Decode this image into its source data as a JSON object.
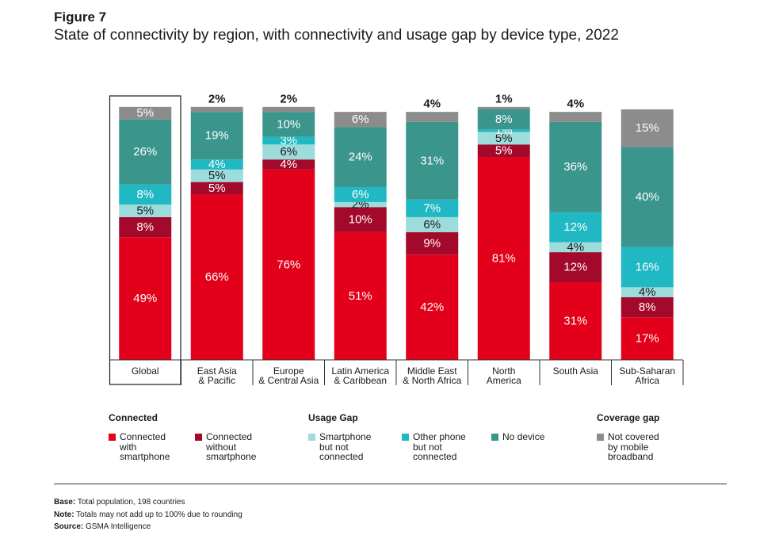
{
  "figure_label": "Figure 7",
  "title": "State of connectivity by region, with connectivity and usage gap by device type, 2022",
  "colors": {
    "connected_smartphone": "#e2001a",
    "connected_without": "#a3092a",
    "smartphone_not_connected": "#9ddcdc",
    "other_phone": "#1fb8c3",
    "no_device": "#3a958c",
    "not_covered": "#8c8c8c"
  },
  "chart_data": {
    "type": "bar",
    "stacked": true,
    "categories": [
      "Global",
      "East Asia\n& Pacific",
      "Europe\n& Central Asia",
      "Latin America\n& Caribbean",
      "Middle East\n& North Africa",
      "North\nAmerica",
      "South Asia",
      "Sub-Saharan\nAfrica"
    ],
    "series": [
      {
        "key": "connected_smartphone",
        "values": [
          49,
          66,
          76,
          51,
          42,
          81,
          31,
          17
        ],
        "labels": [
          "49%",
          "66%",
          "76%",
          "51%",
          "42%",
          "81%",
          "31%",
          "17%"
        ],
        "label_color": "#ffffff"
      },
      {
        "key": "connected_without",
        "values": [
          8,
          5,
          4,
          10,
          9,
          5,
          12,
          8
        ],
        "labels": [
          "8%",
          "5%",
          "4%",
          "10%",
          "9%",
          "5%",
          "12%",
          "8%"
        ],
        "label_color": "#ffffff"
      },
      {
        "key": "smartphone_not_connected",
        "values": [
          5,
          5,
          6,
          2,
          6,
          5,
          4,
          4
        ],
        "labels": [
          "5%",
          "5%",
          "6%",
          "2%",
          "6%",
          "5%",
          "4%",
          "4%"
        ],
        "label_color": "#1a1a1a"
      },
      {
        "key": "other_phone",
        "values": [
          8,
          4,
          3,
          6,
          7,
          1,
          12,
          16
        ],
        "labels": [
          "8%",
          "4%",
          "3%",
          "6%",
          "7%",
          "1%",
          "12%",
          "16%"
        ],
        "label_color": "#ffffff"
      },
      {
        "key": "no_device",
        "values": [
          26,
          19,
          10,
          24,
          31,
          8,
          36,
          40
        ],
        "labels": [
          "26%",
          "19%",
          "10%",
          "24%",
          "31%",
          "8%",
          "36%",
          "40%"
        ],
        "label_color": "#ffffff"
      },
      {
        "key": "not_covered",
        "values": [
          5,
          2,
          2,
          6,
          4,
          1,
          4,
          15
        ],
        "labels": [
          "5%",
          "2%",
          "2%",
          "6%",
          "4%",
          "1%",
          "4%",
          "15%"
        ],
        "label_color": "#ffffff",
        "outside_when_small": true
      }
    ],
    "ylim": [
      0,
      100
    ],
    "highlight_category": "Global"
  },
  "legend": {
    "groups": [
      {
        "heading": "Connected",
        "items": [
          {
            "key": "connected_smartphone",
            "label": "Connected\nwith\nsmartphone"
          },
          {
            "key": "connected_without",
            "label": "Connected\nwithout\nsmartphone"
          }
        ]
      },
      {
        "heading": "Usage Gap",
        "items": [
          {
            "key": "smartphone_not_connected",
            "label": "Smartphone\nbut not\nconnected"
          },
          {
            "key": "other_phone",
            "label": "Other phone\nbut not\nconnected"
          },
          {
            "key": "no_device",
            "label": "No device"
          }
        ]
      },
      {
        "heading": "Coverage gap",
        "items": [
          {
            "key": "not_covered",
            "label": "Not covered\nby mobile\nbroadband"
          }
        ]
      }
    ]
  },
  "notes": {
    "base_label": "Base:",
    "base_text": "Total population, 198 countries",
    "note_label": "Note:",
    "note_text": "Totals may not add up to 100% due to rounding",
    "source_label": "Source:",
    "source_text": "GSMA Intelligence"
  }
}
